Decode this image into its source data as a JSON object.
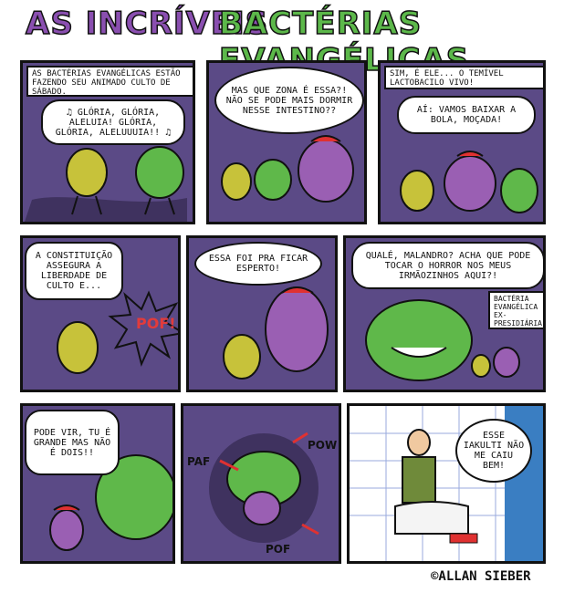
{
  "title": {
    "part1": "AS INCRÍVEIS",
    "part2": "BACTÉRIAS EVANGÉLICAS"
  },
  "panels": [
    {
      "caption": "AS BACTÉRIAS EVANGÉLICAS ESTÃO FAZENDO SEU ANIMADO CULTO DE SÁBADO.",
      "bubble": "♫ GLÓRIA, GLÓRIA, ALELUIA! GLÓRIA, GLÓRIA, ALELUUUIA!! ♫"
    },
    {
      "bubble": "MAS QUE ZONA É ESSA?! NÃO SE PODE MAIS DORMIR NESSE INTESTINO??"
    },
    {
      "caption": "SIM, É ELE... O TEMÍVEL LACTOBACILO VIVO!",
      "bubble": "AÍ: VAMOS BAIXAR A BOLA, MOÇADA!"
    },
    {
      "bubble": "A CONSTITUIÇÃO ASSEGURA A LIBERDADE DE CULTO E...",
      "sfx": "POF!"
    },
    {
      "bubble": "ESSA FOI PRA FICAR ESPERTO!"
    },
    {
      "bubble": "QUALÉ, MALANDRO? ACHA QUE PODE TOCAR O HORROR NOS MEUS IRMÃOZINHOS AQUI?!",
      "label": "BACTÉRIA EVANGÉLICA EX-PRESIDIÁRIA"
    },
    {
      "bubble": "PODE VIR, TU É GRANDE MAS NÃO É DOIS!!"
    },
    {
      "sfx": [
        "PAF",
        "POW",
        "POF"
      ]
    },
    {
      "bubble": "ESSE IAKULTI NÃO ME CAIU BEM!"
    }
  ],
  "credit": "©ALLAN SIEBER",
  "colors": {
    "background": "#5b4a86",
    "green_bacteria": "#9bd13c",
    "yellow_bacteria": "#c7c23a",
    "purple_bacteria": "#9a5fb3",
    "title_purple": "#8a4fb0",
    "title_green": "#5cb84a"
  }
}
